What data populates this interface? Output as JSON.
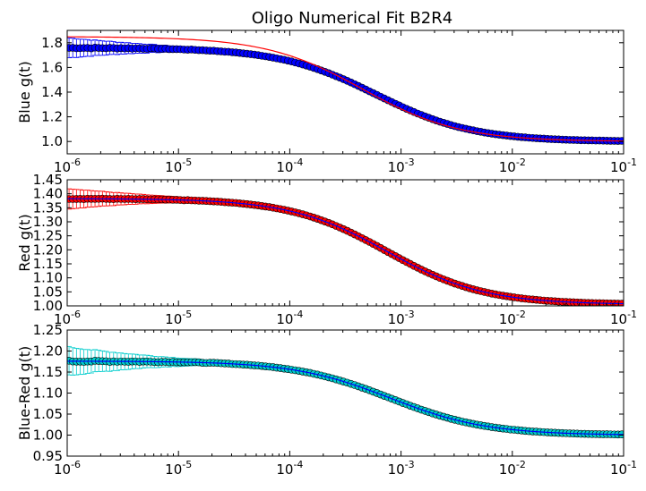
{
  "chart_data": [
    {
      "type": "scatter",
      "title": "Oligo Numerical Fit B2R4",
      "xlabel": "",
      "ylabel": "Blue g(t)",
      "xscale": "log",
      "xlim": [
        1e-06,
        0.1
      ],
      "ylim": [
        0.9,
        1.9
      ],
      "yticks": [
        "1.0",
        "1.2",
        "1.4",
        "1.6",
        "1.8"
      ],
      "ytick_values": [
        1.0,
        1.2,
        1.4,
        1.6,
        1.8
      ],
      "xtick_bases": [
        "10",
        "10",
        "10",
        "10",
        "10",
        "10"
      ],
      "xtick_exps": [
        "-6",
        "-5",
        "-4",
        "-3",
        "-2",
        "-1"
      ],
      "xtick_values": [
        1e-06,
        1e-05,
        0.0001,
        0.001,
        0.01,
        0.1
      ],
      "points": {
        "base": 1.0,
        "amp": 0.76,
        "tau": 0.0006,
        "noise": 0.03
      },
      "fit": {
        "base": 1.0,
        "amp": 0.85,
        "tau": 0.00045
      },
      "marker_color": "#0000ff",
      "errorbar_color": "#0000ff",
      "fit_color": "#ff0000",
      "grid": false
    },
    {
      "type": "scatter",
      "xlabel": "",
      "ylabel": "Red g(t)",
      "xscale": "log",
      "xlim": [
        1e-06,
        0.1
      ],
      "ylim": [
        1.0,
        1.45
      ],
      "yticks": [
        "1.00",
        "1.05",
        "1.10",
        "1.15",
        "1.20",
        "1.25",
        "1.30",
        "1.35",
        "1.40",
        "1.45"
      ],
      "ytick_values": [
        1.0,
        1.05,
        1.1,
        1.15,
        1.2,
        1.25,
        1.3,
        1.35,
        1.4,
        1.45
      ],
      "xtick_bases": [
        "10",
        "10",
        "10",
        "10",
        "10",
        "10"
      ],
      "xtick_exps": [
        "-6",
        "-5",
        "-4",
        "-3",
        "-2",
        "-1"
      ],
      "xtick_values": [
        1e-06,
        1e-05,
        0.0001,
        0.001,
        0.01,
        0.1
      ],
      "points": {
        "base": 1.005,
        "amp": 0.378,
        "tau": 0.00075,
        "noise": 0.02
      },
      "fit": {
        "base": 1.005,
        "amp": 0.378,
        "tau": 0.00075
      },
      "marker_color": "#ff0000",
      "errorbar_color": "#ff0000",
      "fit_color": "#0000ff",
      "grid": false
    },
    {
      "type": "scatter",
      "xlabel": "",
      "ylabel": "Blue-Red g(t)",
      "xscale": "log",
      "xlim": [
        1e-06,
        0.1
      ],
      "ylim": [
        0.95,
        1.25
      ],
      "yticks": [
        "0.95",
        "1.00",
        "1.05",
        "1.10",
        "1.15",
        "1.20",
        "1.25"
      ],
      "ytick_values": [
        0.95,
        1.0,
        1.05,
        1.1,
        1.15,
        1.2,
        1.25
      ],
      "xtick_bases": [
        "10",
        "10",
        "10",
        "10",
        "10",
        "10"
      ],
      "xtick_exps": [
        "-6",
        "-5",
        "-4",
        "-3",
        "-2",
        "-1"
      ],
      "xtick_values": [
        1e-06,
        1e-05,
        0.0001,
        0.001,
        0.01,
        0.1
      ],
      "points": {
        "base": 1.0,
        "amp": 0.176,
        "tau": 0.0008,
        "noise": 0.04
      },
      "fit": {
        "base": 1.0,
        "amp": 0.176,
        "tau": 0.0008
      },
      "marker_color": "#00cccc",
      "errorbar_color": "#00cccc",
      "fit_color": "#0000ff",
      "grid": false
    }
  ]
}
